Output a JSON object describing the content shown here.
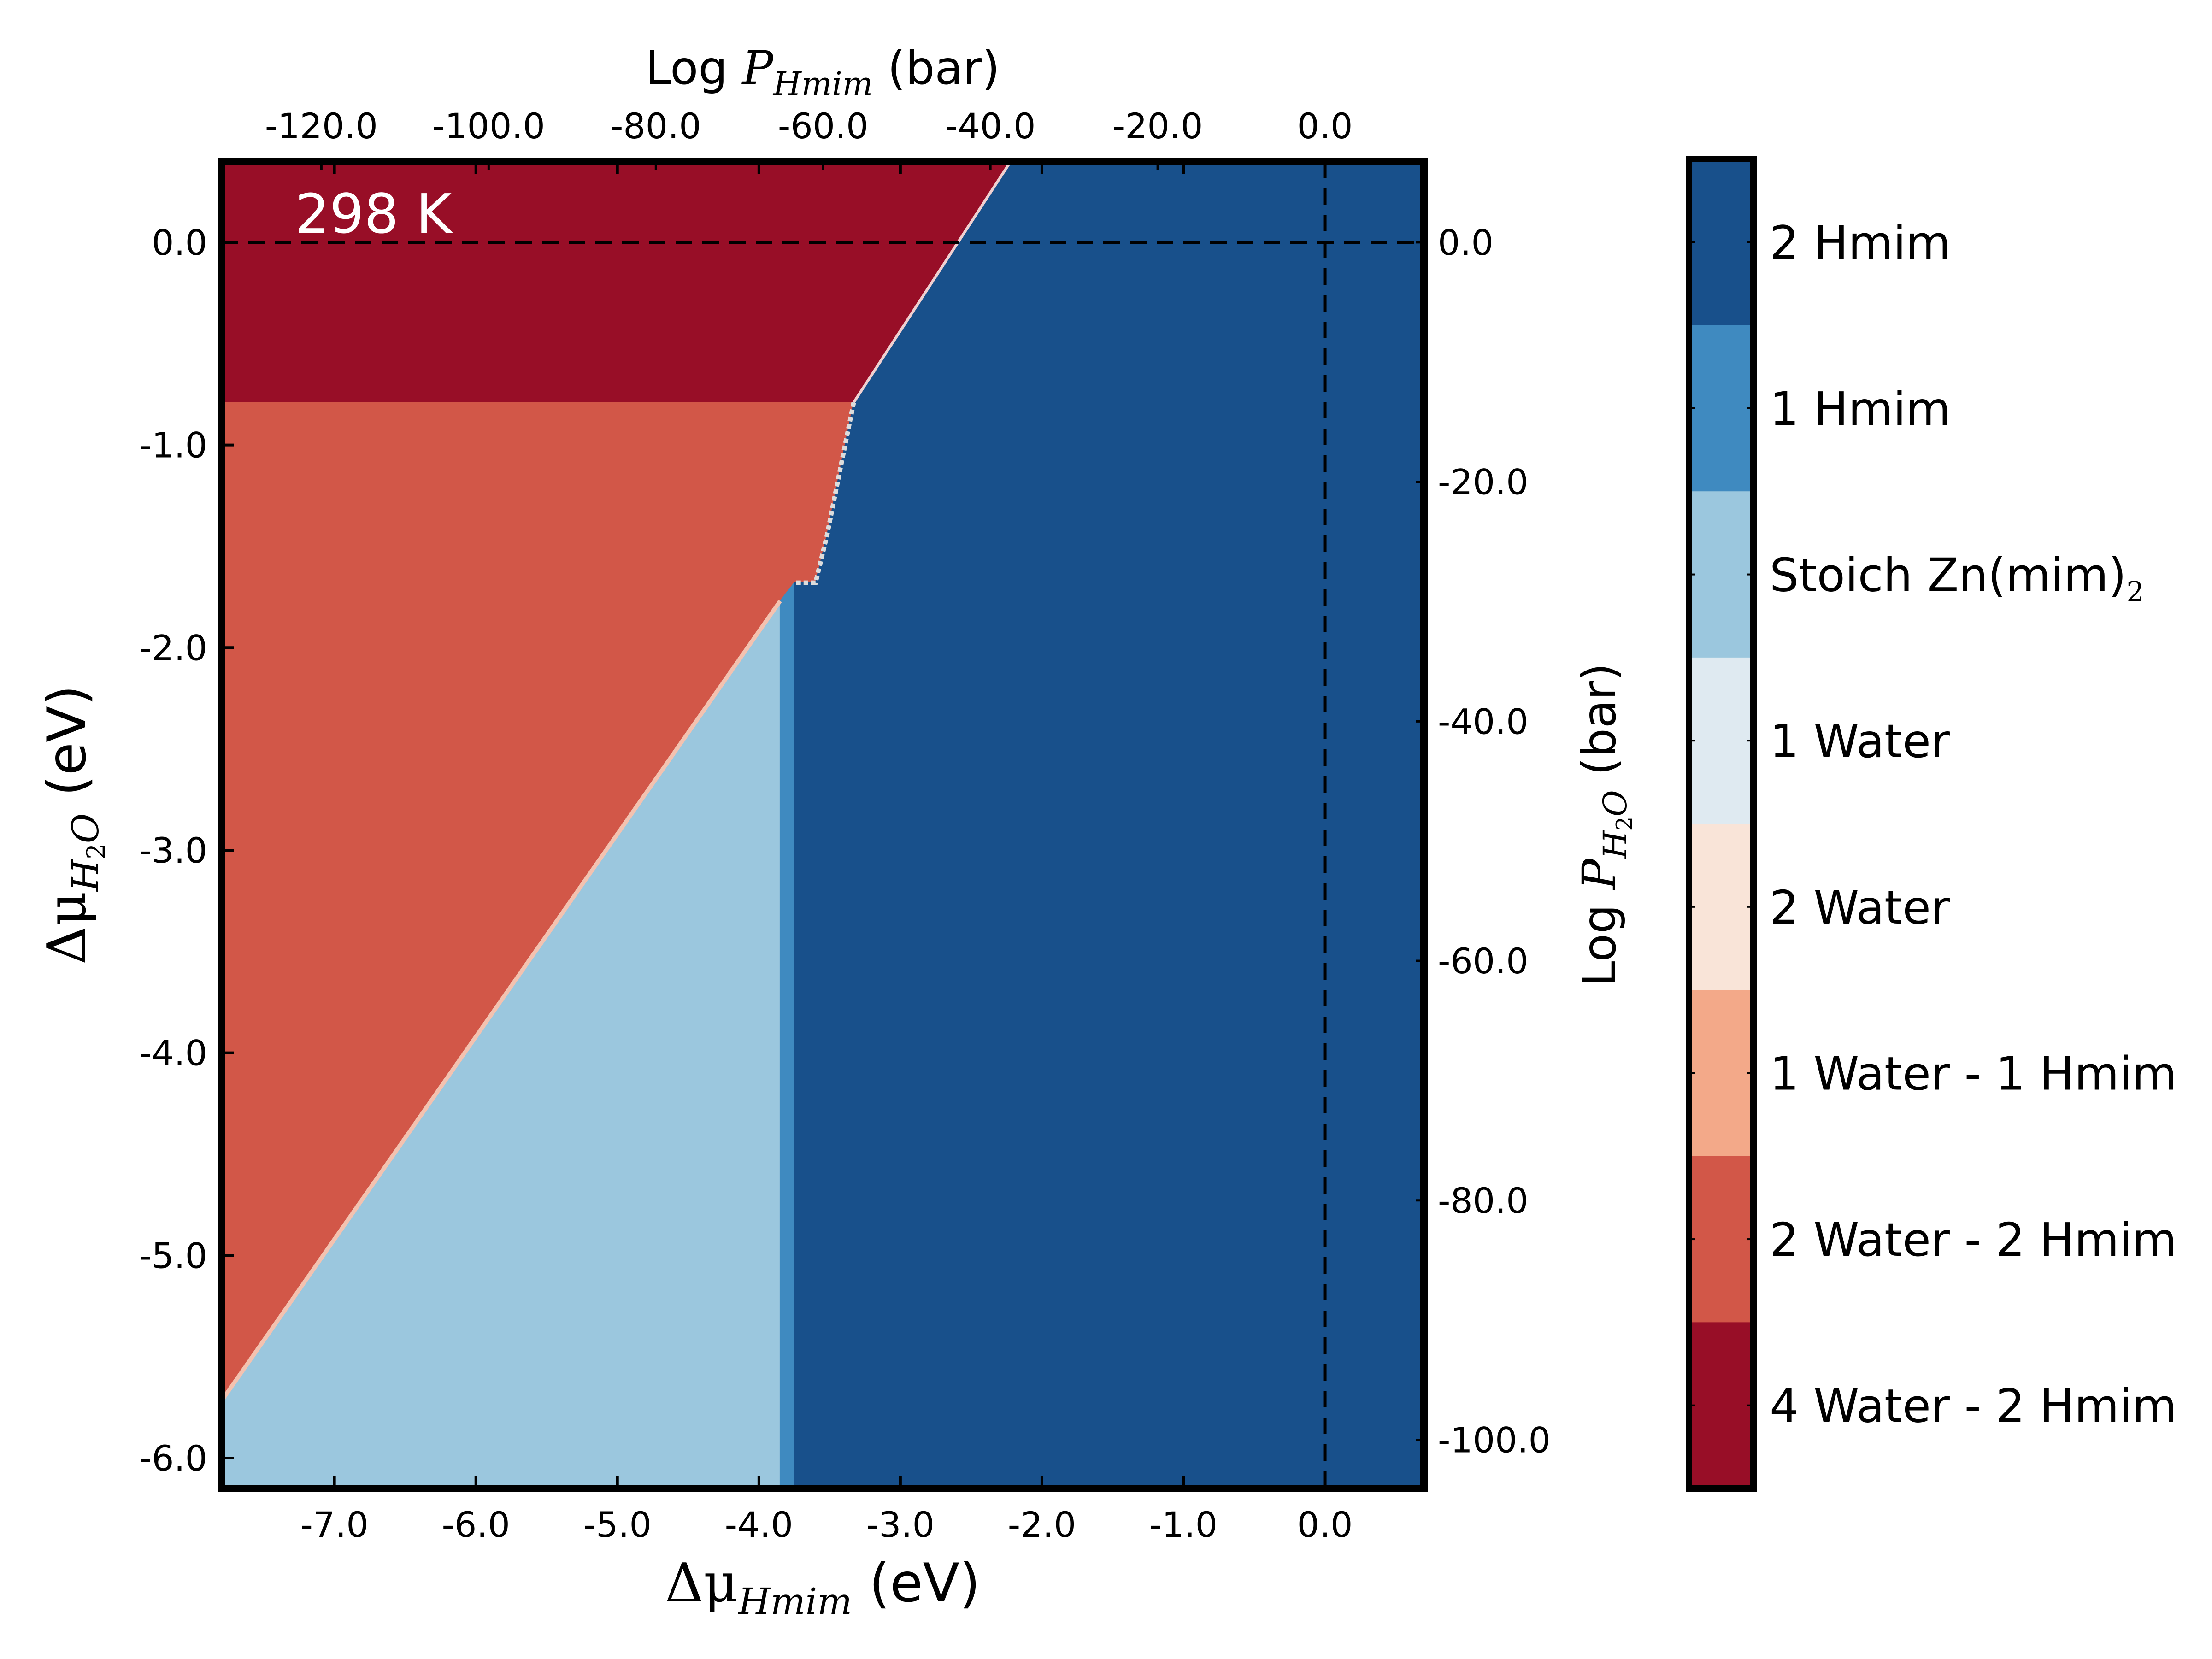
{
  "chart_data": {
    "type": "heatmap",
    "annotation": "298 K",
    "x_axis": {
      "label_symbol": "Δμ",
      "label_subscript": "Hmim",
      "label_unit": " (eV)",
      "lim": [
        -7.8,
        0.7
      ],
      "ticks": [
        -7.0,
        -6.0,
        -5.0,
        -4.0,
        -3.0,
        -2.0,
        -1.0,
        0.0
      ],
      "tick_labels": [
        "-7.0",
        "-6.0",
        "-5.0",
        "-4.0",
        "-3.0",
        "-2.0",
        "-1.0",
        "0.0"
      ]
    },
    "y_axis": {
      "label_symbol": "Δμ",
      "label_subscript": "H",
      "label_subscript_digit": "2",
      "label_subscript_tail": "O",
      "label_unit": " (eV)",
      "lim": [
        -6.15,
        0.4
      ],
      "ticks": [
        0.0,
        -1.0,
        -2.0,
        -3.0,
        -4.0,
        -5.0,
        -6.0
      ],
      "tick_labels": [
        "0.0",
        "-1.0",
        "-2.0",
        "-3.0",
        "-4.0",
        "-5.0",
        "-6.0"
      ]
    },
    "top_axis": {
      "label_prefix": "Log ",
      "label_symbol": "P",
      "label_subscript": "Hmim",
      "label_unit": " (bar)",
      "tick_labels": [
        "-120.0",
        "-100.0",
        "-80.0",
        "-60.0",
        "-40.0",
        "-20.0",
        "0.0"
      ],
      "tick_values": [
        -120.0,
        -100.0,
        -80.0,
        -60.0,
        -40.0,
        -20.0,
        0.0
      ]
    },
    "right_axis": {
      "label_prefix": "Log ",
      "label_symbol": "P",
      "label_subscript": "H",
      "label_subscript_digit": "2",
      "label_subscript_tail": "O",
      "label_unit": " (bar)",
      "tick_labels": [
        "0.0",
        "-20.0",
        "-40.0",
        "-60.0",
        "-80.0",
        "-100.0"
      ],
      "tick_values": [
        0.0,
        -20.0,
        -40.0,
        -60.0,
        -80.0,
        -100.0
      ]
    },
    "reference_lines": [
      {
        "orientation": "vertical",
        "x": 0.0,
        "style": "dashed"
      },
      {
        "orientation": "horizontal",
        "y": 0.0,
        "style": "dashed"
      }
    ],
    "regions": [
      {
        "name": "4 Water - 2 Hmim",
        "color": "#980e27",
        "polygon": [
          [
            -7.8,
            0.4
          ],
          [
            -2.22,
            0.4
          ],
          [
            -3.33,
            -0.79
          ],
          [
            -7.8,
            -0.79
          ]
        ]
      },
      {
        "name": "2 Water - 2 Hmim",
        "color": "#d25748",
        "polygon": [
          [
            -7.8,
            -0.79
          ],
          [
            -3.33,
            -0.79
          ],
          [
            -3.42,
            -1.1
          ],
          [
            -3.52,
            -1.45
          ],
          [
            -3.6,
            -1.68
          ],
          [
            -7.8,
            -5.72
          ]
        ]
      },
      {
        "name": "Stoich Zn(mim)2",
        "color": "#9bc7de",
        "polygon": [
          [
            -7.8,
            -5.72
          ],
          [
            -3.85,
            -1.77
          ],
          [
            -3.85,
            -6.15
          ],
          [
            -7.8,
            -6.15
          ]
        ]
      },
      {
        "name": "1 Hmim",
        "color": "#3f8ac0",
        "polygon": [
          [
            -3.85,
            -1.77
          ],
          [
            -3.75,
            -1.68
          ],
          [
            -3.75,
            -6.15
          ],
          [
            -3.85,
            -6.15
          ]
        ]
      },
      {
        "name": "2 Hmim",
        "color": "#18508b",
        "polygon": [
          [
            -2.22,
            0.4
          ],
          [
            0.7,
            0.4
          ],
          [
            0.7,
            -6.15
          ],
          [
            -3.75,
            -6.15
          ],
          [
            -3.75,
            -1.68
          ],
          [
            -3.6,
            -1.68
          ],
          [
            -3.52,
            -1.45
          ],
          [
            -3.42,
            -1.1
          ],
          [
            -3.33,
            -0.79
          ]
        ]
      }
    ],
    "colorbar": {
      "entries": [
        {
          "label": "2 Hmim",
          "color": "#18508b"
        },
        {
          "label": "1 Hmim",
          "color": "#3f8ac0"
        },
        {
          "label": "Stoich Zn(mim)",
          "label_subscript": "2",
          "color": "#9bc7de"
        },
        {
          "label": "1 Water",
          "color": "#dfeaf1"
        },
        {
          "label": "2 Water",
          "color": "#f9e4d8"
        },
        {
          "label": "1 Water - 1 Hmim",
          "color": "#f3a989"
        },
        {
          "label": "2 Water - 2 Hmim",
          "color": "#d25748"
        },
        {
          "label": "4 Water - 2 Hmim",
          "color": "#980e27"
        }
      ]
    }
  }
}
